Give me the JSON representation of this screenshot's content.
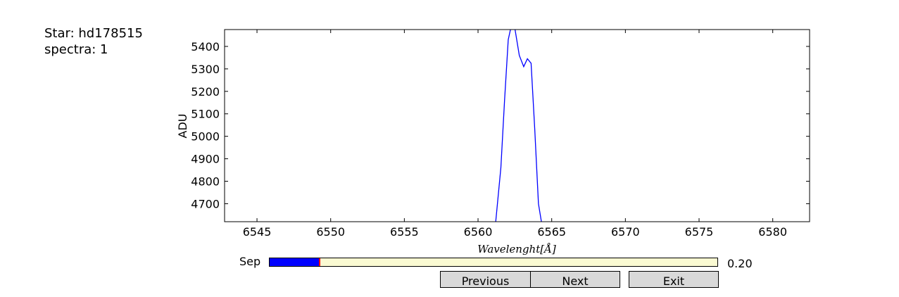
{
  "info": {
    "star_label": "Star: hd178515",
    "spectra_label": "spectra: 1"
  },
  "chart_data": {
    "type": "line",
    "title": "",
    "xlabel": "Wavelenght[Å]",
    "ylabel": "ADU",
    "xlim": [
      6542.8,
      6582.5
    ],
    "ylim": [
      4620,
      5475
    ],
    "xticks": [
      6545,
      6550,
      6555,
      6560,
      6565,
      6570,
      6575,
      6580
    ],
    "yticks": [
      4700,
      4800,
      4900,
      5000,
      5100,
      5200,
      5300,
      5400
    ],
    "grid": false,
    "series": [
      {
        "color": "#0000ff",
        "x": [
          6561.2,
          6561.55,
          6561.8,
          6562.05,
          6562.25,
          6562.5,
          6562.8,
          6563.1,
          6563.35,
          6563.6,
          6563.85,
          6564.1,
          6564.3
        ],
        "y": [
          4620,
          4860,
          5160,
          5430,
          5490,
          5480,
          5360,
          5310,
          5345,
          5325,
          5030,
          4700,
          4620
        ]
      }
    ]
  },
  "slider": {
    "label": "Sep",
    "value": 0.2,
    "value_text": "0.20",
    "fill_fraction": 0.112,
    "fill_color": "#0000ff",
    "track_color": "#fafad2"
  },
  "buttons": {
    "previous": "Previous",
    "next": "Next",
    "exit": "Exit"
  }
}
